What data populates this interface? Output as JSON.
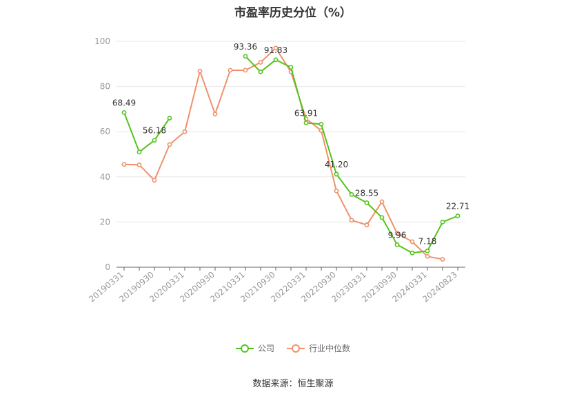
{
  "source_text": "数据来源：恒生聚源",
  "colors": {
    "company": "#52c41a",
    "industry": "#f0906a",
    "grid": "#e6e6e6",
    "axis": "#666666"
  },
  "chart_data": {
    "type": "line",
    "title": "市盈率历史分位（%）",
    "xlabel": "",
    "ylabel": "",
    "ylim": [
      0,
      100
    ],
    "yticks": [
      0,
      20,
      40,
      60,
      80,
      100
    ],
    "grid": true,
    "legend_position": "bottom",
    "x": [
      "20190331",
      "20190630",
      "20190930",
      "20191231",
      "20200331",
      "20200630",
      "20200930",
      "20201231",
      "20210331",
      "20210630",
      "20210930",
      "20211231",
      "20220331",
      "20220630",
      "20220930",
      "20221231",
      "20230331",
      "20230630",
      "20230930",
      "20231231",
      "20240331",
      "20240630",
      "20240823"
    ],
    "xtick_labels": [
      "20190331",
      "20190930",
      "20200331",
      "20200930",
      "20210331",
      "20210930",
      "20220331",
      "20220930",
      "20230331",
      "20230930",
      "20240331",
      "20240823"
    ],
    "series": [
      {
        "name": "公司",
        "values": [
          68.49,
          51.0,
          56.18,
          66.0,
          null,
          null,
          null,
          null,
          93.36,
          86.5,
          91.83,
          88.5,
          63.91,
          63.3,
          41.2,
          32.2,
          28.55,
          22.0,
          9.96,
          6.3,
          7.18,
          20.0,
          22.71
        ]
      },
      {
        "name": "行业中位数",
        "values": [
          45.5,
          45.3,
          38.5,
          54.3,
          60.0,
          86.8,
          67.8,
          87.2,
          87.2,
          90.7,
          97.0,
          86.5,
          65.7,
          60.5,
          33.8,
          20.8,
          18.7,
          29.0,
          15.0,
          11.3,
          4.8,
          3.5,
          null
        ]
      }
    ],
    "annotations": [
      {
        "series": 0,
        "index": 0,
        "text": "68.49"
      },
      {
        "series": 0,
        "index": 2,
        "text": "56.18"
      },
      {
        "series": 0,
        "index": 8,
        "text": "93.36"
      },
      {
        "series": 0,
        "index": 10,
        "text": "91.83"
      },
      {
        "series": 0,
        "index": 12,
        "text": "63.91"
      },
      {
        "series": 0,
        "index": 14,
        "text": "41.20"
      },
      {
        "series": 0,
        "index": 16,
        "text": "28.55"
      },
      {
        "series": 0,
        "index": 18,
        "text": "9.96"
      },
      {
        "series": 0,
        "index": 20,
        "text": "7.18"
      },
      {
        "series": 0,
        "index": 22,
        "text": "22.71"
      }
    ]
  }
}
